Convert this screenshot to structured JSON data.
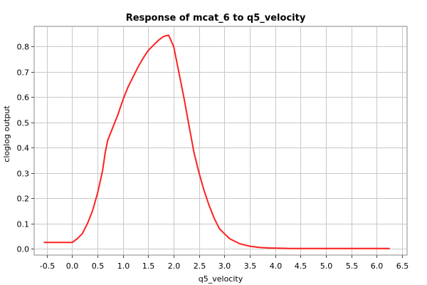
{
  "chart_data": {
    "type": "line",
    "title": "Response of mcat_6 to q5_velocity",
    "xlabel": "q5_velocity",
    "ylabel": "cloglog output",
    "xlim": [
      -0.75,
      6.6
    ],
    "ylim": [
      -0.025,
      0.88
    ],
    "xticks": [
      -0.5,
      0.0,
      0.5,
      1.0,
      1.5,
      2.0,
      2.5,
      3.0,
      3.5,
      4.0,
      4.5,
      5.0,
      5.5,
      6.0,
      6.5
    ],
    "xtick_labels": [
      "-0.5",
      "0.0",
      "0.5",
      "1.0",
      "1.5",
      "2.0",
      "2.5",
      "3.0",
      "3.5",
      "4.0",
      "4.5",
      "5.0",
      "5.5",
      "6.0",
      "6.5"
    ],
    "yticks": [
      0.0,
      0.1,
      0.2,
      0.3,
      0.4,
      0.5,
      0.6,
      0.7,
      0.8
    ],
    "ytick_labels": [
      "0.0",
      "0.1",
      "0.2",
      "0.3",
      "0.4",
      "0.5",
      "0.6",
      "0.7",
      "0.8"
    ],
    "grid": true,
    "series": [
      {
        "color": "#ff2020",
        "x": [
          -0.55,
          0.0,
          0.1,
          0.2,
          0.3,
          0.4,
          0.5,
          0.6,
          0.65,
          0.7,
          0.8,
          0.9,
          1.0,
          1.1,
          1.2,
          1.3,
          1.4,
          1.5,
          1.6,
          1.7,
          1.8,
          1.9,
          2.0,
          2.1,
          2.2,
          2.3,
          2.4,
          2.5,
          2.6,
          2.7,
          2.8,
          2.9,
          3.0,
          3.1,
          3.2,
          3.3,
          3.4,
          3.5,
          3.7,
          3.9,
          4.1,
          4.3,
          4.5,
          5.0,
          5.5,
          6.0,
          6.25
        ],
        "y": [
          0.025,
          0.025,
          0.04,
          0.06,
          0.1,
          0.15,
          0.22,
          0.31,
          0.38,
          0.43,
          0.48,
          0.53,
          0.59,
          0.64,
          0.68,
          0.72,
          0.755,
          0.785,
          0.805,
          0.825,
          0.84,
          0.845,
          0.8,
          0.7,
          0.6,
          0.49,
          0.38,
          0.3,
          0.23,
          0.17,
          0.12,
          0.08,
          0.06,
          0.04,
          0.03,
          0.02,
          0.015,
          0.01,
          0.005,
          0.003,
          0.002,
          0.001,
          0.001,
          0.001,
          0.001,
          0.001,
          0.001
        ]
      }
    ]
  }
}
